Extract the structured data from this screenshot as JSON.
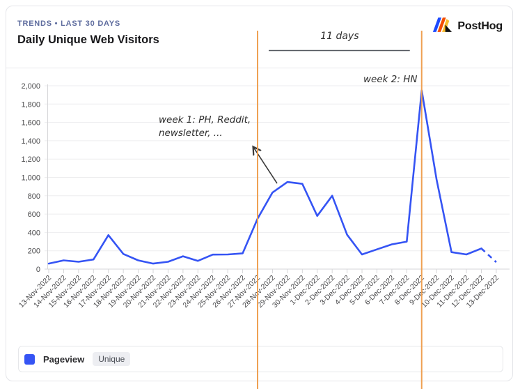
{
  "header": {
    "breadcrumb": "TRENDS • LAST 30 DAYS",
    "title": "Daily Unique Web Visitors",
    "brand": "PostHog"
  },
  "legend": {
    "series_label": "Pageview",
    "badge": "Unique"
  },
  "colors": {
    "line": "#3554f4",
    "annotation_line": "#efa052",
    "grid": "#ededef",
    "axis": "#d6d6d8",
    "tick_label": "#4a4a4c",
    "breadcrumb": "#5e6c9e",
    "handwriting": "#2d2d2d",
    "arrow": "#3a3a3a",
    "bracket": "#54585f",
    "brand_blue": "#1d4aff",
    "brand_red": "#f54e00",
    "brand_yellow": "#f9bd2b"
  },
  "chart_data": {
    "type": "line",
    "title": "Daily Unique Web Visitors",
    "x": [
      "13-Nov-2022",
      "14-Nov-2022",
      "15-Nov-2022",
      "16-Nov-2022",
      "17-Nov-2022",
      "18-Nov-2022",
      "19-Nov-2022",
      "20-Nov-2022",
      "21-Nov-2022",
      "22-Nov-2022",
      "23-Nov-2022",
      "24-Nov-2022",
      "25-Nov-2022",
      "26-Nov-2022",
      "27-Nov-2022",
      "28-Nov-2022",
      "29-Nov-2022",
      "30-Nov-2022",
      "1-Dec-2022",
      "2-Dec-2022",
      "3-Dec-2022",
      "4-Dec-2022",
      "5-Dec-2022",
      "6-Dec-2022",
      "7-Dec-2022",
      "8-Dec-2022",
      "9-Dec-2022",
      "10-Dec-2022",
      "11-Dec-2022",
      "12-Dec-2022",
      "13-Dec-2022"
    ],
    "series": [
      {
        "name": "Pageview",
        "values": [
          60,
          95,
          80,
          105,
          370,
          165,
          95,
          60,
          80,
          140,
          90,
          158,
          160,
          172,
          550,
          835,
          950,
          930,
          580,
          800,
          375,
          160,
          215,
          270,
          300,
          1950,
          975,
          185,
          160,
          225,
          75
        ]
      }
    ],
    "ylim": [
      0,
      2000
    ],
    "ytick_step": 200,
    "ytick_labels": [
      "0",
      "200",
      "400",
      "600",
      "800",
      "1,000",
      "1,200",
      "1,400",
      "1,600",
      "1,800",
      "2,000"
    ],
    "grid": true,
    "legend_position": "bottom",
    "last_segment_dashed": true,
    "annotations": {
      "vlines": [
        {
          "x_index": 14
        },
        {
          "x_index": 25
        }
      ],
      "span_label": {
        "text": "11 days"
      },
      "notes": [
        {
          "text_lines": [
            "week 1: PH, Reddit,",
            "newsletter, ..."
          ],
          "x": 228,
          "y": 176
        },
        {
          "text_lines": [
            "week 2: HN"
          ],
          "x": 522,
          "y": 118
        }
      ],
      "arrow": {
        "from": [
          398,
          263
        ],
        "to": [
          364,
          211
        ]
      }
    }
  }
}
